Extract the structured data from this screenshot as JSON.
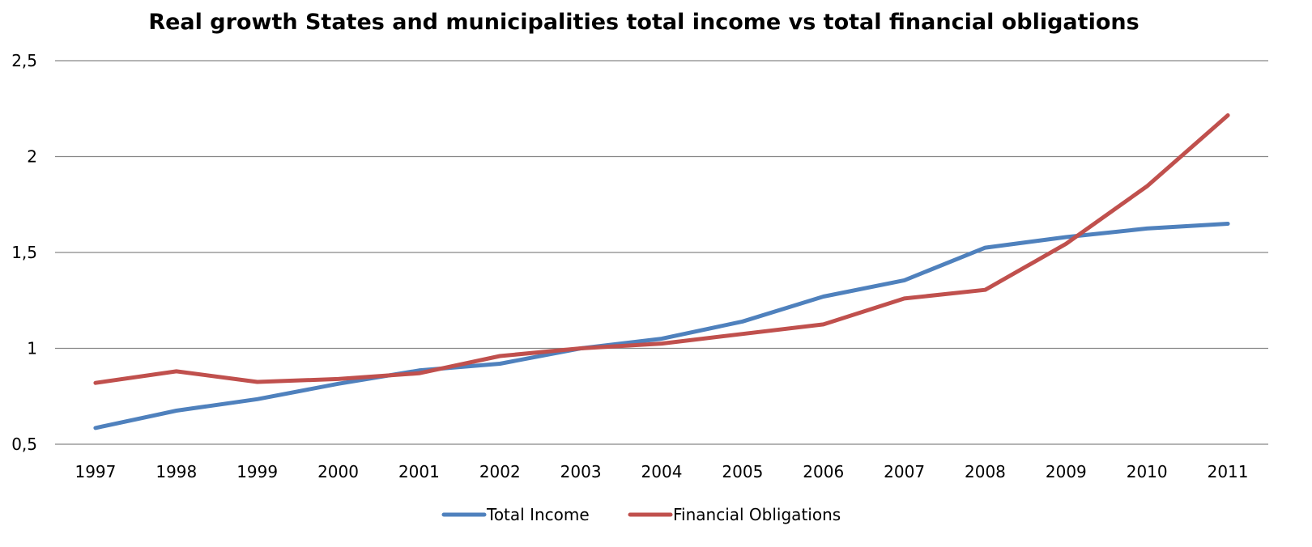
{
  "chart_data": {
    "type": "line",
    "title": "Real growth States and municipalities total income vs total financial obligations",
    "xlabel": "",
    "ylabel": "",
    "categories": [
      "1997",
      "1998",
      "1999",
      "2000",
      "2001",
      "2002",
      "2003",
      "2004",
      "2005",
      "2006",
      "2007",
      "2008",
      "2009",
      "2010",
      "2011"
    ],
    "ylim": [
      0.5,
      2.5
    ],
    "y_ticks": [
      0.5,
      1,
      1.5,
      2,
      2.5
    ],
    "y_tick_labels": [
      "0,5",
      "1",
      "1,5",
      "2",
      "2,5"
    ],
    "grid": true,
    "legend_position": "bottom",
    "series": [
      {
        "name": "Total Income",
        "color": "#4F81BD",
        "values": [
          0.585,
          0.675,
          0.735,
          0.815,
          0.885,
          0.92,
          1.0,
          1.05,
          1.14,
          1.27,
          1.355,
          1.525,
          1.58,
          1.625,
          1.65
        ]
      },
      {
        "name": "Financial Obligations",
        "color": "#C0504D",
        "values": [
          0.82,
          0.88,
          0.825,
          0.84,
          0.87,
          0.96,
          1.0,
          1.025,
          1.075,
          1.125,
          1.26,
          1.305,
          1.545,
          1.845,
          2.215
        ]
      }
    ]
  }
}
